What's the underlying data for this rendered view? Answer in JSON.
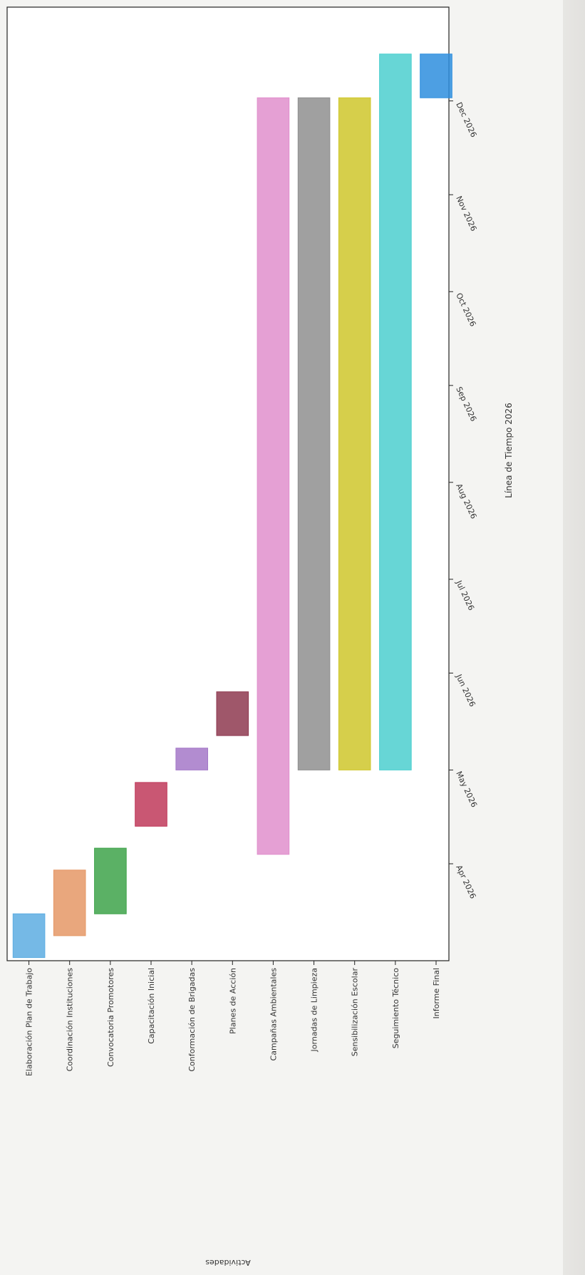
{
  "chart_data": {
    "type": "gantt",
    "xlabel": "Línea de Tiempo 2026",
    "ylabel": "Actividades",
    "xlim": [
      "2026-03-01",
      "2026-12-31"
    ],
    "x_ticks": [
      {
        "date": "2026-04-01",
        "label": "Apr 2026"
      },
      {
        "date": "2026-05-01",
        "label": "May 2026"
      },
      {
        "date": "2026-06-01",
        "label": "Jun 2026"
      },
      {
        "date": "2026-07-01",
        "label": "Jul 2026"
      },
      {
        "date": "2026-08-01",
        "label": "Aug 2026"
      },
      {
        "date": "2026-09-01",
        "label": "Sep 2026"
      },
      {
        "date": "2026-10-01",
        "label": "Oct 2026"
      },
      {
        "date": "2026-11-01",
        "label": "Nov 2026"
      },
      {
        "date": "2026-12-01",
        "label": "Dec 2026"
      }
    ],
    "tasks": [
      {
        "name": "Elaboración Plan de Trabajo",
        "start": "2026-03-02",
        "end": "2026-03-16",
        "color": "#5dade2"
      },
      {
        "name": "Coordinación Instituciones",
        "start": "2026-03-09",
        "end": "2026-03-30",
        "color": "#e59866"
      },
      {
        "name": "Convocatoria Promotores",
        "start": "2026-03-16",
        "end": "2026-04-06",
        "color": "#3ea34a"
      },
      {
        "name": "Capacitación Inicial",
        "start": "2026-04-13",
        "end": "2026-04-27",
        "color": "#c0395a"
      },
      {
        "name": "Conformación de Brigadas",
        "start": "2026-05-01",
        "end": "2026-05-08",
        "color": "#a478c8"
      },
      {
        "name": "Planes de Acción",
        "start": "2026-05-12",
        "end": "2026-05-26",
        "color": "#8e3a50"
      },
      {
        "name": "Campañas Ambientales",
        "start": "2026-04-04",
        "end": "2026-12-02",
        "color": "#e08fcc"
      },
      {
        "name": "Jornadas de Limpieza",
        "start": "2026-05-01",
        "end": "2026-12-02",
        "color": "#8f8f8f"
      },
      {
        "name": "Sensibilización Escolar",
        "start": "2026-05-01",
        "end": "2026-12-02",
        "color": "#cfc72c"
      },
      {
        "name": "Seguimiento Técnico",
        "start": "2026-05-01",
        "end": "2026-12-16",
        "color": "#4ccfcf"
      },
      {
        "name": "Informe Final",
        "start": "2026-12-02",
        "end": "2026-12-16",
        "color": "#2e8ede"
      }
    ]
  }
}
